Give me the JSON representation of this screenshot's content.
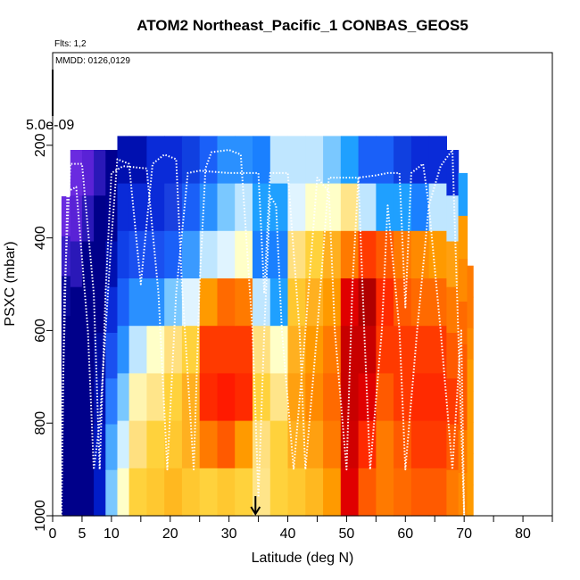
{
  "chart_data": {
    "type": "heatmap",
    "title": "ATOM2 Northeast_Pacific_1 CONBAS_GEOS5",
    "flights_label": "Flts: 1,2",
    "dates_label": "MMDD: 0126,0129",
    "colorbar_value_label": "5.0e-09",
    "xlabel": "Latitude (deg N)",
    "ylabel": "PSXC (mbar)",
    "xlim": [
      0,
      85
    ],
    "ylim": [
      1000,
      0
    ],
    "x_ticks": [
      0,
      5,
      10,
      20,
      30,
      40,
      50,
      60,
      70,
      80
    ],
    "y_ticks": [
      200,
      400,
      600,
      800,
      1000
    ],
    "arrow_marker_latitude": 34.5,
    "grid": false,
    "color_scale": [
      "#5a1fd6",
      "#00008a",
      "#0a2bd8",
      "#1fa0ff",
      "#bfe6ff",
      "#ffffc8",
      "#ffd23c",
      "#ff9a00",
      "#ff3a00",
      "#c80000"
    ],
    "columns": [
      {
        "x0": 1.5,
        "x1": 3,
        "top": 310,
        "colors": [
          "#6a2be0",
          "#3a20c8",
          "#0a0a9a",
          "#00008a",
          "#00008a",
          "#00008a",
          "#00008a",
          "#00008a"
        ]
      },
      {
        "x0": 3,
        "x1": 5,
        "top": 210,
        "colors": [
          "#6a2be0",
          "#5a22d6",
          "#2a18b8",
          "#00008a",
          "#00008a",
          "#00008a",
          "#00008a",
          "#00008a"
        ]
      },
      {
        "x0": 5,
        "x1": 7,
        "top": 210,
        "colors": [
          "#5a22d6",
          "#2a18b8",
          "#00008a",
          "#00008a",
          "#00008a",
          "#00008a",
          "#00008a",
          "#00008a"
        ]
      },
      {
        "x0": 7,
        "x1": 9,
        "top": 210,
        "colors": [
          "#2a18b8",
          "#00008a",
          "#00008a",
          "#00008a",
          "#000ca0",
          "#0010b0",
          "#0018c0",
          "#001cc8"
        ]
      },
      {
        "x0": 9,
        "x1": 11,
        "top": 210,
        "colors": [
          "#000090",
          "#000090",
          "#0010b0",
          "#0a2bd8",
          "#1a50f0",
          "#2a7aff",
          "#4aa8ff",
          "#7ac8ff"
        ]
      },
      {
        "x0": 11,
        "x1": 13,
        "top": 180,
        "colors": [
          "#0010b0",
          "#0a2bd8",
          "#1040e8",
          "#1a60f8",
          "#2a90ff",
          "#7ac8ff",
          "#d0f0ff",
          "#ffffc8"
        ]
      },
      {
        "x0": 13,
        "x1": 16,
        "top": 180,
        "colors": [
          "#0010b0",
          "#0a2bd8",
          "#1a50f0",
          "#2a90ff",
          "#bfe6ff",
          "#fff5b0",
          "#ffe080",
          "#ffd23c"
        ]
      },
      {
        "x0": 16,
        "x1": 19,
        "top": 180,
        "colors": [
          "#0a2bd8",
          "#0a2bd8",
          "#1a50f0",
          "#2a90ff",
          "#ffffc8",
          "#ffe58a",
          "#ffd23c",
          "#ffc830"
        ]
      },
      {
        "x0": 19,
        "x1": 22,
        "top": 180,
        "colors": [
          "#0a2bd8",
          "#1a40e0",
          "#1a60f8",
          "#7ac8ff",
          "#ffe080",
          "#ffd23c",
          "#ffc830",
          "#ffb820"
        ]
      },
      {
        "x0": 22,
        "x1": 25,
        "top": 180,
        "colors": [
          "#1040e0",
          "#1a60f8",
          "#3a9aff",
          "#e0f4ff",
          "#ffd23c",
          "#ffb020",
          "#ffb020",
          "#ffc830"
        ]
      },
      {
        "x0": 25,
        "x1": 28,
        "top": 180,
        "colors": [
          "#1a60f8",
          "#2a90ff",
          "#bfe6ff",
          "#ff9a00",
          "#ff3a00",
          "#ff2a00",
          "#ff7a00",
          "#ffd23c"
        ]
      },
      {
        "x0": 28,
        "x1": 31,
        "top": 180,
        "colors": [
          "#2a90ff",
          "#7ac8ff",
          "#e0f4ff",
          "#ff6a00",
          "#ff3a00",
          "#ff1a00",
          "#ff5a00",
          "#ffc830"
        ]
      },
      {
        "x0": 31,
        "x1": 34,
        "top": 180,
        "colors": [
          "#2a90ff",
          "#bfe6ff",
          "#ffffc8",
          "#ff7a00",
          "#ff3a00",
          "#ff2a00",
          "#ff9a00",
          "#ffd23c"
        ]
      },
      {
        "x0": 34,
        "x1": 37,
        "top": 180,
        "colors": [
          "#1a80ff",
          "#1fa0ff",
          "#1a80ff",
          "#bfe6ff",
          "#ffe080",
          "#ffd23c",
          "#ffe080",
          "#ffe58a"
        ]
      },
      {
        "x0": 37,
        "x1": 40,
        "top": 180,
        "colors": [
          "#bfe6ff",
          "#1fa0ff",
          "#1a80ff",
          "#1fa0ff",
          "#ffffc8",
          "#ffe58a",
          "#ffd23c",
          "#ffd23c"
        ]
      },
      {
        "x0": 40,
        "x1": 43,
        "top": 180,
        "colors": [
          "#bfe6ff",
          "#e0f4ff",
          "#ffe080",
          "#ffc830",
          "#ffb020",
          "#ffa010",
          "#ffb020",
          "#ffc830"
        ]
      },
      {
        "x0": 43,
        "x1": 46,
        "top": 180,
        "colors": [
          "#bfe6ff",
          "#ffffc8",
          "#ffd23c",
          "#ffb020",
          "#ff9a00",
          "#ff8a00",
          "#ffa010",
          "#ffb820"
        ]
      },
      {
        "x0": 46,
        "x1": 49,
        "top": 180,
        "colors": [
          "#7ac8ff",
          "#ffffc8",
          "#ffb020",
          "#ff9a00",
          "#ff7a00",
          "#ff6a00",
          "#ff7a00",
          "#ff9a00"
        ]
      },
      {
        "x0": 49,
        "x1": 52,
        "top": 180,
        "colors": [
          "#1fa0ff",
          "#ffe58a",
          "#ff7a00",
          "#e00000",
          "#c80000",
          "#c80000",
          "#d00000",
          "#e00000"
        ]
      },
      {
        "x0": 52,
        "x1": 55,
        "top": 180,
        "colors": [
          "#1a60f8",
          "#bfe6ff",
          "#ff3a00",
          "#b00000",
          "#c80000",
          "#e00000",
          "#ff2a00",
          "#ff5a00"
        ]
      },
      {
        "x0": 55,
        "x1": 58,
        "top": 180,
        "colors": [
          "#1a60f8",
          "#1fa0ff",
          "#ff5a00",
          "#ff2a00",
          "#ff3a00",
          "#ff5a00",
          "#ff7a00",
          "#ff7a00"
        ]
      },
      {
        "x0": 58,
        "x1": 61,
        "top": 180,
        "colors": [
          "#1040e0",
          "#1fa0ff",
          "#ff7a00",
          "#ff5a00",
          "#ff3a00",
          "#ff3a00",
          "#ff5a00",
          "#ff6a00"
        ]
      },
      {
        "x0": 61,
        "x1": 64,
        "top": 180,
        "colors": [
          "#0a2bd8",
          "#1a80ff",
          "#ff8a00",
          "#ff6a00",
          "#ff3a00",
          "#ff2a00",
          "#ff3a00",
          "#ff5a00"
        ]
      },
      {
        "x0": 64,
        "x1": 67,
        "top": 180,
        "colors": [
          "#0a2bd8",
          "#bfe6ff",
          "#ff9a00",
          "#ff6a00",
          "#ff3a00",
          "#ff2a00",
          "#ff3a00",
          "#ff5a00"
        ]
      },
      {
        "x0": 67,
        "x1": 69,
        "top": 210,
        "colors": [
          "#0a2bd8",
          "#bfe6ff",
          "#ffa010",
          "#ff7a00",
          "#ff5a00",
          "#ff3a00",
          "#ff5a00",
          "#ff7a00"
        ]
      },
      {
        "x0": 69,
        "x1": 70.5,
        "top": 260,
        "colors": [
          "#1fa0ff",
          "#ff9a00",
          "#ff8a00",
          "#ff6a00",
          "#ff5a00",
          "#ff5a00",
          "#ff7a00",
          "#ff8a00"
        ]
      },
      {
        "x0": 70.5,
        "x1": 71.5,
        "top": 460,
        "colors": [
          "#ff7a00",
          "#ff7a00",
          "#ff8a00",
          "#ff9a00",
          "#ff9a00",
          "#ff9a00",
          "#ff9a00",
          "#ff9a00"
        ]
      }
    ],
    "flight_track_1": [
      [
        1.5,
        1000
      ],
      [
        2,
        520
      ],
      [
        3,
        240
      ],
      [
        5,
        240
      ],
      [
        7,
        520
      ],
      [
        8,
        900
      ],
      [
        9,
        520
      ],
      [
        10,
        260
      ],
      [
        12,
        245
      ],
      [
        16,
        250
      ],
      [
        18,
        520
      ],
      [
        19.5,
        900
      ],
      [
        21,
        520
      ],
      [
        23,
        260
      ],
      [
        25,
        255
      ],
      [
        30,
        260
      ],
      [
        35,
        260
      ],
      [
        36,
        520
      ],
      [
        37,
        260
      ],
      [
        40,
        260
      ],
      [
        42,
        600
      ],
      [
        43,
        900
      ],
      [
        45,
        600
      ],
      [
        47,
        270
      ],
      [
        52,
        270
      ],
      [
        53,
        600
      ],
      [
        54,
        900
      ],
      [
        56,
        600
      ],
      [
        57,
        330
      ],
      [
        59,
        600
      ],
      [
        60,
        900
      ],
      [
        62,
        600
      ],
      [
        64,
        330
      ],
      [
        66,
        600
      ],
      [
        68,
        900
      ],
      [
        69.5,
        600
      ],
      [
        70,
        1000
      ]
    ],
    "flight_track_2": [
      [
        1,
        1000
      ],
      [
        2,
        600
      ],
      [
        2.5,
        300
      ],
      [
        4,
        290
      ],
      [
        6,
        600
      ],
      [
        7,
        900
      ],
      [
        8,
        800
      ],
      [
        10,
        400
      ],
      [
        11,
        230
      ],
      [
        13,
        240
      ],
      [
        15,
        500
      ],
      [
        17,
        240
      ],
      [
        19,
        220
      ],
      [
        21,
        230
      ],
      [
        22,
        500
      ],
      [
        24,
        900
      ],
      [
        25,
        500
      ],
      [
        26,
        250
      ],
      [
        27,
        215
      ],
      [
        30,
        210
      ],
      [
        32,
        220
      ],
      [
        34,
        600
      ],
      [
        35,
        960
      ],
      [
        36,
        600
      ],
      [
        37,
        310
      ],
      [
        38,
        330
      ],
      [
        39,
        600
      ],
      [
        41,
        900
      ],
      [
        43,
        600
      ],
      [
        45,
        270
      ],
      [
        47,
        300
      ],
      [
        48,
        600
      ],
      [
        50,
        900
      ],
      [
        51,
        500
      ],
      [
        52,
        270
      ],
      [
        55,
        265
      ],
      [
        57,
        260
      ],
      [
        59,
        260
      ],
      [
        60,
        550
      ],
      [
        61,
        260
      ],
      [
        63,
        240
      ],
      [
        64,
        330
      ],
      [
        66,
        245
      ],
      [
        68,
        210
      ],
      [
        70,
        1000
      ]
    ]
  }
}
